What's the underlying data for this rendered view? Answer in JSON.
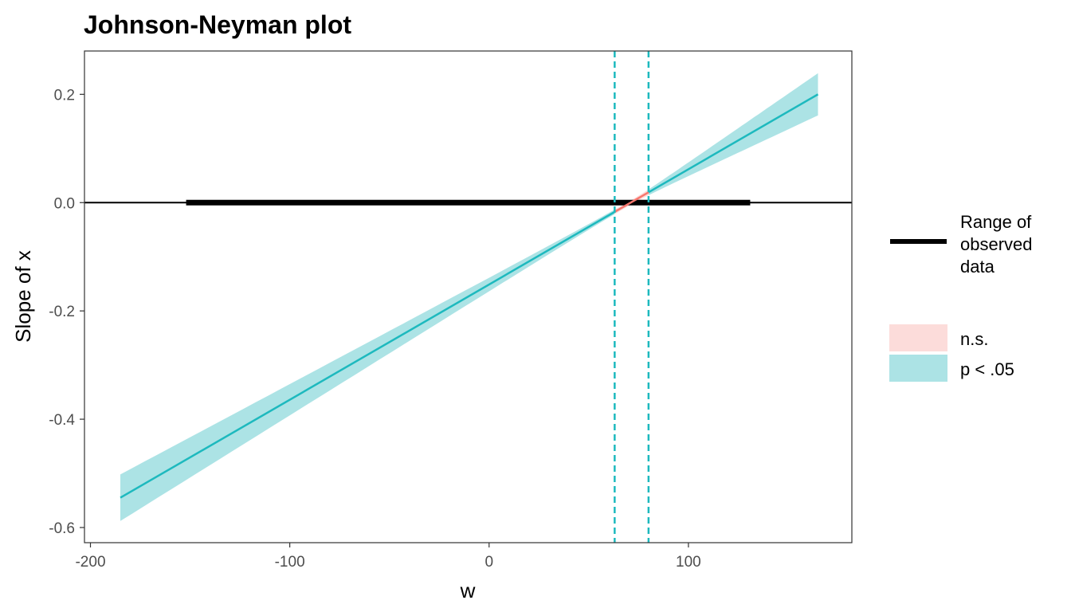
{
  "chart_data": {
    "type": "line",
    "title": "Johnson-Neyman plot",
    "xlabel": "w",
    "ylabel": "Slope of x",
    "xlim": [
      -203,
      182
    ],
    "ylim": [
      -0.628,
      0.28
    ],
    "x_ticks": [
      -200,
      -100,
      0,
      100
    ],
    "x_tick_labels": [
      "-200",
      "-100",
      "0",
      "100"
    ],
    "y_ticks": [
      -0.6,
      -0.4,
      -0.2,
      0.0,
      0.2
    ],
    "y_tick_labels": [
      "-0.6",
      "-0.4",
      "-0.2",
      "0.0",
      "0.2"
    ],
    "grid": false,
    "slope_line": {
      "x_start": -185,
      "x_end": 165,
      "y_start": -0.545,
      "y_end": 0.2,
      "ci_start": [
        -0.588,
        -0.502
      ],
      "ci_end": [
        0.162,
        0.24
      ],
      "ci_min_halfwidth": 0.004
    },
    "jn_bounds": [
      63,
      80
    ],
    "zero_line": 0,
    "observed_range": [
      -152,
      131
    ],
    "series": [
      {
        "name": "n.s.",
        "line_color": "#F8766D",
        "fill_color": "#FCDCDA",
        "x_range": [
          63,
          80
        ]
      },
      {
        "name": "p < .05",
        "line_color": "#1DB9BE",
        "fill_color": "#ACE3E5",
        "x_ranges": [
          [
            -185,
            63
          ],
          [
            80,
            165
          ]
        ]
      }
    ],
    "legend": {
      "placement": "right",
      "range_label_lines": [
        "Range of",
        "observed",
        "data"
      ],
      "entries": [
        "n.s.",
        "p < .05"
      ]
    }
  }
}
